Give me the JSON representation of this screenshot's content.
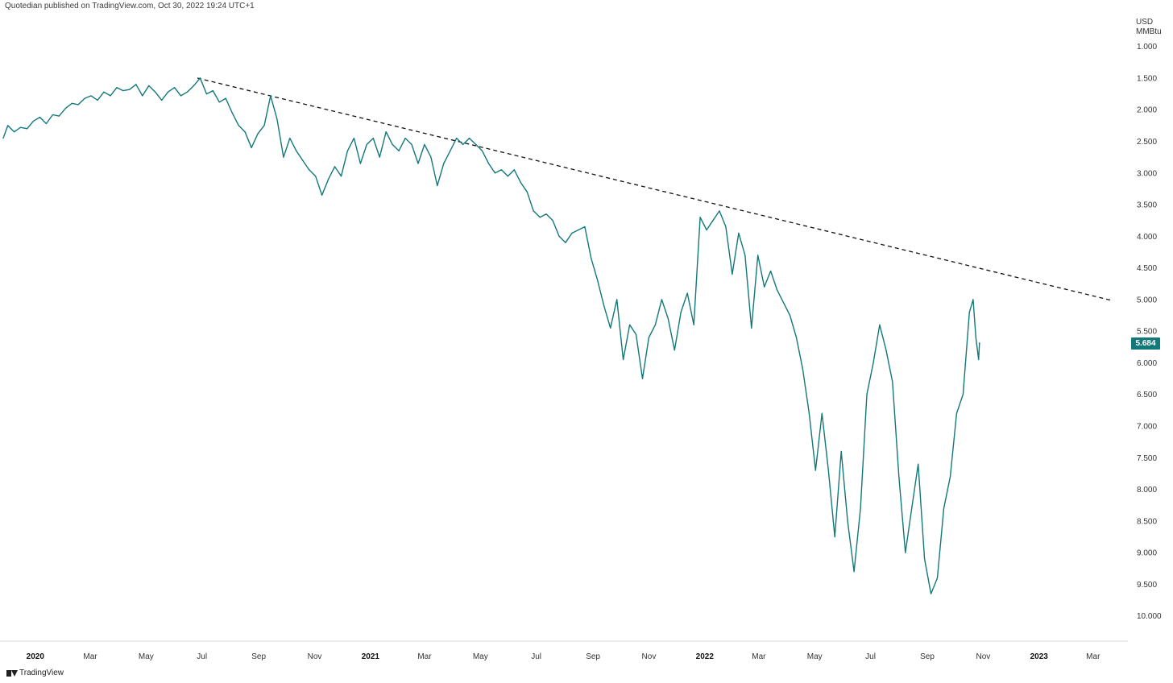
{
  "header": {
    "publish_note": "Quotedian published on TradingView.com, Oct 30, 2022 19:24 UTC+1"
  },
  "axis": {
    "unit_line1": "USD",
    "unit_line2": "MMBtu"
  },
  "branding": {
    "logo_icon": "tradingview-logo-icon",
    "label": "TradingView"
  },
  "last_value_badge": "5.684",
  "colors": {
    "series": "#13787a",
    "trendline": "#111111",
    "badge_bg": "#13787a"
  },
  "chart_data": {
    "type": "line",
    "y_scale": "inverted",
    "ylim": [
      0.75,
      10.5
    ],
    "y_ticks": [
      "1.000",
      "1.500",
      "2.000",
      "2.500",
      "3.000",
      "3.500",
      "4.000",
      "4.500",
      "5.000",
      "5.500",
      "6.000",
      "6.500",
      "7.000",
      "7.500",
      "8.000",
      "8.500",
      "9.000",
      "9.500",
      "10.000"
    ],
    "x_ticks": [
      {
        "date": "2020-01-01",
        "label": "2020",
        "major": true
      },
      {
        "date": "2020-03-01",
        "label": "Mar",
        "major": false
      },
      {
        "date": "2020-05-01",
        "label": "May",
        "major": false
      },
      {
        "date": "2020-07-01",
        "label": "Jul",
        "major": false
      },
      {
        "date": "2020-09-01",
        "label": "Sep",
        "major": false
      },
      {
        "date": "2020-11-01",
        "label": "Nov",
        "major": false
      },
      {
        "date": "2021-01-01",
        "label": "2021",
        "major": true
      },
      {
        "date": "2021-03-01",
        "label": "Mar",
        "major": false
      },
      {
        "date": "2021-05-01",
        "label": "May",
        "major": false
      },
      {
        "date": "2021-07-01",
        "label": "Jul",
        "major": false
      },
      {
        "date": "2021-09-01",
        "label": "Sep",
        "major": false
      },
      {
        "date": "2021-11-01",
        "label": "Nov",
        "major": false
      },
      {
        "date": "2022-01-01",
        "label": "2022",
        "major": true
      },
      {
        "date": "2022-03-01",
        "label": "Mar",
        "major": false
      },
      {
        "date": "2022-05-01",
        "label": "May",
        "major": false
      },
      {
        "date": "2022-07-01",
        "label": "Jul",
        "major": false
      },
      {
        "date": "2022-09-01",
        "label": "Sep",
        "major": false
      },
      {
        "date": "2022-11-01",
        "label": "Nov",
        "major": false
      },
      {
        "date": "2023-01-01",
        "label": "2023",
        "major": true
      },
      {
        "date": "2023-03-01",
        "label": "Mar",
        "major": false
      }
    ],
    "xlim": [
      "2019-11-27",
      "2023-04-08"
    ],
    "series": [
      {
        "values": [
          [
            "2019-11-27",
            2.45
          ],
          [
            "2019-12-02",
            2.25
          ],
          [
            "2019-12-09",
            2.35
          ],
          [
            "2019-12-16",
            2.28
          ],
          [
            "2019-12-23",
            2.3
          ],
          [
            "2019-12-30",
            2.18
          ],
          [
            "2020-01-06",
            2.12
          ],
          [
            "2020-01-13",
            2.22
          ],
          [
            "2020-01-20",
            2.08
          ],
          [
            "2020-01-27",
            2.1
          ],
          [
            "2020-02-03",
            1.98
          ],
          [
            "2020-02-10",
            1.9
          ],
          [
            "2020-02-17",
            1.92
          ],
          [
            "2020-02-24",
            1.82
          ],
          [
            "2020-03-02",
            1.78
          ],
          [
            "2020-03-09",
            1.85
          ],
          [
            "2020-03-16",
            1.72
          ],
          [
            "2020-03-23",
            1.78
          ],
          [
            "2020-03-30",
            1.65
          ],
          [
            "2020-04-06",
            1.7
          ],
          [
            "2020-04-13",
            1.68
          ],
          [
            "2020-04-20",
            1.6
          ],
          [
            "2020-04-27",
            1.78
          ],
          [
            "2020-05-04",
            1.62
          ],
          [
            "2020-05-11",
            1.72
          ],
          [
            "2020-05-18",
            1.85
          ],
          [
            "2020-05-25",
            1.72
          ],
          [
            "2020-06-01",
            1.65
          ],
          [
            "2020-06-08",
            1.78
          ],
          [
            "2020-06-15",
            1.72
          ],
          [
            "2020-06-22",
            1.62
          ],
          [
            "2020-06-29",
            1.5
          ],
          [
            "2020-07-06",
            1.75
          ],
          [
            "2020-07-13",
            1.7
          ],
          [
            "2020-07-20",
            1.88
          ],
          [
            "2020-07-27",
            1.82
          ],
          [
            "2020-08-03",
            2.05
          ],
          [
            "2020-08-10",
            2.25
          ],
          [
            "2020-08-17",
            2.35
          ],
          [
            "2020-08-24",
            2.6
          ],
          [
            "2020-08-31",
            2.38
          ],
          [
            "2020-09-07",
            2.25
          ],
          [
            "2020-09-14",
            1.78
          ],
          [
            "2020-09-21",
            2.15
          ],
          [
            "2020-09-28",
            2.75
          ],
          [
            "2020-10-05",
            2.45
          ],
          [
            "2020-10-12",
            2.65
          ],
          [
            "2020-10-19",
            2.8
          ],
          [
            "2020-10-26",
            2.95
          ],
          [
            "2020-11-02",
            3.05
          ],
          [
            "2020-11-09",
            3.35
          ],
          [
            "2020-11-16",
            3.1
          ],
          [
            "2020-11-23",
            2.9
          ],
          [
            "2020-11-30",
            3.05
          ],
          [
            "2020-12-07",
            2.65
          ],
          [
            "2020-12-14",
            2.45
          ],
          [
            "2020-12-21",
            2.85
          ],
          [
            "2020-12-28",
            2.55
          ],
          [
            "2021-01-04",
            2.45
          ],
          [
            "2021-01-11",
            2.75
          ],
          [
            "2021-01-18",
            2.35
          ],
          [
            "2021-01-25",
            2.55
          ],
          [
            "2021-02-01",
            2.65
          ],
          [
            "2021-02-08",
            2.45
          ],
          [
            "2021-02-15",
            2.55
          ],
          [
            "2021-02-22",
            2.85
          ],
          [
            "2021-03-01",
            2.55
          ],
          [
            "2021-03-08",
            2.75
          ],
          [
            "2021-03-15",
            3.2
          ],
          [
            "2021-03-22",
            2.85
          ],
          [
            "2021-03-29",
            2.65
          ],
          [
            "2021-04-05",
            2.45
          ],
          [
            "2021-04-12",
            2.55
          ],
          [
            "2021-04-19",
            2.45
          ],
          [
            "2021-04-26",
            2.55
          ],
          [
            "2021-05-03",
            2.65
          ],
          [
            "2021-05-10",
            2.85
          ],
          [
            "2021-05-17",
            3.0
          ],
          [
            "2021-05-24",
            2.95
          ],
          [
            "2021-05-31",
            3.05
          ],
          [
            "2021-06-07",
            2.95
          ],
          [
            "2021-06-14",
            3.15
          ],
          [
            "2021-06-21",
            3.3
          ],
          [
            "2021-06-28",
            3.6
          ],
          [
            "2021-07-05",
            3.7
          ],
          [
            "2021-07-12",
            3.65
          ],
          [
            "2021-07-19",
            3.75
          ],
          [
            "2021-07-26",
            4.0
          ],
          [
            "2021-08-02",
            4.1
          ],
          [
            "2021-08-09",
            3.95
          ],
          [
            "2021-08-16",
            3.9
          ],
          [
            "2021-08-23",
            3.85
          ],
          [
            "2021-08-30",
            4.35
          ],
          [
            "2021-09-06",
            4.7
          ],
          [
            "2021-09-13",
            5.1
          ],
          [
            "2021-09-20",
            5.45
          ],
          [
            "2021-09-27",
            5.0
          ],
          [
            "2021-10-04",
            5.95
          ],
          [
            "2021-10-11",
            5.4
          ],
          [
            "2021-10-18",
            5.55
          ],
          [
            "2021-10-25",
            6.25
          ],
          [
            "2021-11-01",
            5.6
          ],
          [
            "2021-11-08",
            5.4
          ],
          [
            "2021-11-15",
            5.0
          ],
          [
            "2021-11-22",
            5.3
          ],
          [
            "2021-11-29",
            5.8
          ],
          [
            "2021-12-06",
            5.2
          ],
          [
            "2021-12-13",
            4.9
          ],
          [
            "2021-12-20",
            5.4
          ],
          [
            "2021-12-27",
            3.7
          ],
          [
            "2022-01-03",
            3.9
          ],
          [
            "2022-01-10",
            3.75
          ],
          [
            "2022-01-17",
            3.6
          ],
          [
            "2022-01-24",
            3.85
          ],
          [
            "2022-01-31",
            4.6
          ],
          [
            "2022-02-07",
            3.95
          ],
          [
            "2022-02-14",
            4.3
          ],
          [
            "2022-02-21",
            5.45
          ],
          [
            "2022-02-28",
            4.3
          ],
          [
            "2022-03-07",
            4.8
          ],
          [
            "2022-03-14",
            4.55
          ],
          [
            "2022-03-21",
            4.85
          ],
          [
            "2022-04-04",
            5.25
          ],
          [
            "2022-04-11",
            5.6
          ],
          [
            "2022-04-18",
            6.1
          ],
          [
            "2022-04-25",
            6.8
          ],
          [
            "2022-05-02",
            7.7
          ],
          [
            "2022-05-09",
            6.8
          ],
          [
            "2022-05-16",
            7.7
          ],
          [
            "2022-05-23",
            8.75
          ],
          [
            "2022-05-30",
            7.4
          ],
          [
            "2022-06-06",
            8.5
          ],
          [
            "2022-06-13",
            9.3
          ],
          [
            "2022-06-20",
            8.3
          ],
          [
            "2022-06-27",
            6.5
          ],
          [
            "2022-07-04",
            6.0
          ],
          [
            "2022-07-11",
            5.4
          ],
          [
            "2022-07-18",
            5.8
          ],
          [
            "2022-07-25",
            6.3
          ],
          [
            "2022-08-01",
            7.8
          ],
          [
            "2022-08-08",
            9.0
          ],
          [
            "2022-08-15",
            8.3
          ],
          [
            "2022-08-22",
            7.6
          ],
          [
            "2022-08-29",
            9.1
          ],
          [
            "2022-09-05",
            9.65
          ],
          [
            "2022-09-12",
            9.4
          ],
          [
            "2022-09-19",
            8.3
          ],
          [
            "2022-09-26",
            7.8
          ],
          [
            "2022-10-03",
            6.8
          ],
          [
            "2022-10-10",
            6.5
          ],
          [
            "2022-10-17",
            5.2
          ],
          [
            "2022-10-21",
            5.0
          ],
          [
            "2022-10-24",
            5.6
          ],
          [
            "2022-10-27",
            5.95
          ],
          [
            "2022-10-28",
            5.684
          ]
        ]
      }
    ],
    "trendline": {
      "style": "dashed",
      "from": [
        "2020-06-26",
        1.5
      ],
      "to": [
        "2023-03-23",
        5.02
      ]
    }
  }
}
